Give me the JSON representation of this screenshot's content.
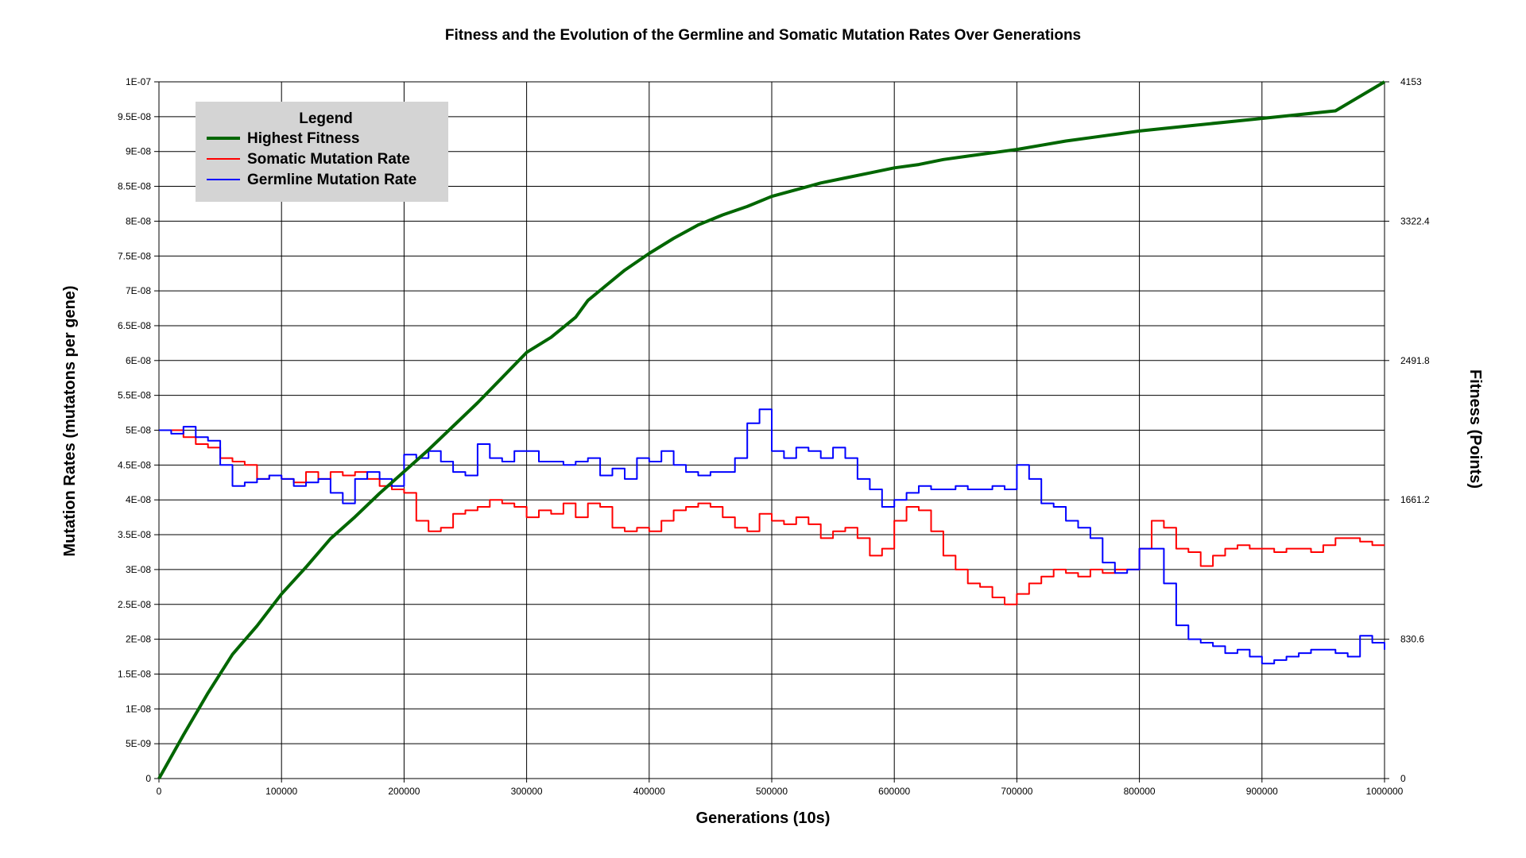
{
  "chart_data": {
    "type": "line",
    "title": "Fitness and the Evolution of the Germline and Somatic Mutation Rates Over Generations",
    "xlabel": "Generations (10s)",
    "ylabel_left": "Mutation Rates (mutatons per gene)",
    "ylabel_right": "Fitness (Points)",
    "xlim": [
      0,
      1000000
    ],
    "ylim_left": [
      0,
      1e-07
    ],
    "ylim_right": [
      0,
      4153
    ],
    "grid": true,
    "legend_placement": "top-left",
    "legend_title": "Legend",
    "x_ticks": [
      "0",
      "100000",
      "200000",
      "300000",
      "400000",
      "500000",
      "600000",
      "700000",
      "800000",
      "900000",
      "1000000"
    ],
    "y_left_ticks": [
      "0",
      "5E-09",
      "1E-08",
      "1.5E-08",
      "2E-08",
      "2.5E-08",
      "3E-08",
      "3.5E-08",
      "4E-08",
      "4.5E-08",
      "5E-08",
      "5.5E-08",
      "6E-08",
      "6.5E-08",
      "7E-08",
      "7.5E-08",
      "8E-08",
      "8.5E-08",
      "9E-08",
      "9.5E-08",
      "1E-07"
    ],
    "y_right_ticks": [
      "0",
      "830.6",
      "1661.2",
      "2491.8",
      "3322.4",
      "4153"
    ],
    "series": [
      {
        "name": "Highest Fitness",
        "axis": "right",
        "color": "#006600",
        "x": [
          0,
          20000,
          40000,
          60000,
          80000,
          100000,
          120000,
          140000,
          160000,
          180000,
          200000,
          220000,
          240000,
          260000,
          280000,
          300000,
          320000,
          340000,
          350000,
          360000,
          380000,
          400000,
          420000,
          440000,
          460000,
          480000,
          500000,
          520000,
          540000,
          560000,
          580000,
          600000,
          620000,
          640000,
          660000,
          680000,
          700000,
          720000,
          740000,
          760000,
          780000,
          800000,
          840000,
          880000,
          920000,
          960000,
          1000000
        ],
        "y": [
          0,
          260,
          510,
          740,
          910,
          1100,
          1260,
          1430,
          1560,
          1700,
          1830,
          1960,
          2100,
          2240,
          2390,
          2540,
          2630,
          2750,
          2850,
          2910,
          3030,
          3130,
          3220,
          3300,
          3360,
          3410,
          3470,
          3510,
          3550,
          3580,
          3610,
          3640,
          3660,
          3690,
          3710,
          3730,
          3750,
          3775,
          3800,
          3820,
          3840,
          3860,
          3890,
          3920,
          3950,
          3980,
          4153
        ]
      },
      {
        "name": "Somatic Mutation Rate",
        "axis": "left",
        "color": "#ff0000",
        "x": [
          0,
          10000,
          20000,
          30000,
          40000,
          50000,
          60000,
          70000,
          80000,
          90000,
          100000,
          110000,
          120000,
          130000,
          140000,
          150000,
          160000,
          170000,
          180000,
          190000,
          200000,
          210000,
          220000,
          230000,
          240000,
          250000,
          260000,
          270000,
          280000,
          290000,
          300000,
          310000,
          320000,
          330000,
          340000,
          350000,
          360000,
          370000,
          380000,
          390000,
          400000,
          410000,
          420000,
          430000,
          440000,
          450000,
          460000,
          470000,
          480000,
          490000,
          500000,
          510000,
          520000,
          530000,
          540000,
          550000,
          560000,
          570000,
          580000,
          590000,
          600000,
          610000,
          620000,
          630000,
          640000,
          650000,
          660000,
          670000,
          680000,
          690000,
          700000,
          710000,
          720000,
          730000,
          740000,
          750000,
          760000,
          770000,
          780000,
          790000,
          800000,
          810000,
          820000,
          830000,
          840000,
          850000,
          860000,
          870000,
          880000,
          890000,
          900000,
          910000,
          920000,
          930000,
          940000,
          950000,
          960000,
          970000,
          980000,
          990000,
          1000000
        ],
        "y": [
          5e-08,
          5e-08,
          4.9e-08,
          4.8e-08,
          4.75e-08,
          4.6e-08,
          4.55e-08,
          4.5e-08,
          4.3e-08,
          4.35e-08,
          4.3e-08,
          4.25e-08,
          4.4e-08,
          4.3e-08,
          4.4e-08,
          4.35e-08,
          4.4e-08,
          4.3e-08,
          4.2e-08,
          4.15e-08,
          4.1e-08,
          3.7e-08,
          3.55e-08,
          3.6e-08,
          3.8e-08,
          3.85e-08,
          3.9e-08,
          4e-08,
          3.95e-08,
          3.9e-08,
          3.75e-08,
          3.85e-08,
          3.8e-08,
          3.95e-08,
          3.75e-08,
          3.95e-08,
          3.9e-08,
          3.6e-08,
          3.55e-08,
          3.6e-08,
          3.55e-08,
          3.7e-08,
          3.85e-08,
          3.9e-08,
          3.95e-08,
          3.9e-08,
          3.75e-08,
          3.6e-08,
          3.55e-08,
          3.8e-08,
          3.7e-08,
          3.65e-08,
          3.75e-08,
          3.65e-08,
          3.45e-08,
          3.55e-08,
          3.6e-08,
          3.45e-08,
          3.2e-08,
          3.3e-08,
          3.7e-08,
          3.9e-08,
          3.85e-08,
          3.55e-08,
          3.2e-08,
          3e-08,
          2.8e-08,
          2.75e-08,
          2.6e-08,
          2.5e-08,
          2.65e-08,
          2.8e-08,
          2.9e-08,
          3e-08,
          2.95e-08,
          2.9e-08,
          3e-08,
          2.95e-08,
          3e-08,
          3e-08,
          3.3e-08,
          3.7e-08,
          3.6e-08,
          3.3e-08,
          3.25e-08,
          3.05e-08,
          3.2e-08,
          3.3e-08,
          3.35e-08,
          3.3e-08,
          3.3e-08,
          3.25e-08,
          3.3e-08,
          3.3e-08,
          3.25e-08,
          3.35e-08,
          3.45e-08,
          3.45e-08,
          3.4e-08,
          3.35e-08,
          3.35e-08
        ]
      },
      {
        "name": "Germline Mutation Rate",
        "axis": "left",
        "color": "#0000ff",
        "x": [
          0,
          10000,
          20000,
          30000,
          40000,
          50000,
          60000,
          70000,
          80000,
          90000,
          100000,
          110000,
          120000,
          130000,
          140000,
          150000,
          160000,
          170000,
          180000,
          190000,
          200000,
          210000,
          220000,
          230000,
          240000,
          250000,
          260000,
          270000,
          280000,
          290000,
          300000,
          310000,
          320000,
          330000,
          340000,
          350000,
          360000,
          370000,
          380000,
          390000,
          400000,
          410000,
          420000,
          430000,
          440000,
          450000,
          460000,
          470000,
          480000,
          490000,
          500000,
          510000,
          520000,
          530000,
          540000,
          550000,
          560000,
          570000,
          580000,
          590000,
          600000,
          610000,
          620000,
          630000,
          640000,
          650000,
          660000,
          670000,
          680000,
          690000,
          700000,
          710000,
          720000,
          730000,
          740000,
          750000,
          760000,
          770000,
          780000,
          790000,
          800000,
          810000,
          820000,
          830000,
          840000,
          850000,
          860000,
          870000,
          880000,
          890000,
          900000,
          910000,
          920000,
          930000,
          940000,
          950000,
          960000,
          970000,
          980000,
          990000,
          1000000
        ],
        "y": [
          5e-08,
          4.95e-08,
          5.05e-08,
          4.9e-08,
          4.85e-08,
          4.5e-08,
          4.2e-08,
          4.25e-08,
          4.3e-08,
          4.35e-08,
          4.3e-08,
          4.2e-08,
          4.25e-08,
          4.3e-08,
          4.1e-08,
          3.95e-08,
          4.3e-08,
          4.4e-08,
          4.3e-08,
          4.2e-08,
          4.65e-08,
          4.6e-08,
          4.7e-08,
          4.55e-08,
          4.4e-08,
          4.35e-08,
          4.8e-08,
          4.6e-08,
          4.55e-08,
          4.7e-08,
          4.7e-08,
          4.55e-08,
          4.55e-08,
          4.5e-08,
          4.55e-08,
          4.6e-08,
          4.35e-08,
          4.45e-08,
          4.3e-08,
          4.6e-08,
          4.55e-08,
          4.7e-08,
          4.5e-08,
          4.4e-08,
          4.35e-08,
          4.4e-08,
          4.4e-08,
          4.6e-08,
          5.1e-08,
          5.3e-08,
          4.7e-08,
          4.6e-08,
          4.75e-08,
          4.7e-08,
          4.6e-08,
          4.75e-08,
          4.6e-08,
          4.3e-08,
          4.15e-08,
          3.9e-08,
          4e-08,
          4.1e-08,
          4.2e-08,
          4.15e-08,
          4.15e-08,
          4.2e-08,
          4.15e-08,
          4.15e-08,
          4.2e-08,
          4.15e-08,
          4.5e-08,
          4.3e-08,
          3.95e-08,
          3.9e-08,
          3.7e-08,
          3.6e-08,
          3.45e-08,
          3.1e-08,
          2.95e-08,
          3e-08,
          3.3e-08,
          3.3e-08,
          2.8e-08,
          2.2e-08,
          2e-08,
          1.95e-08,
          1.9e-08,
          1.8e-08,
          1.85e-08,
          1.75e-08,
          1.65e-08,
          1.7e-08,
          1.75e-08,
          1.8e-08,
          1.85e-08,
          1.85e-08,
          1.8e-08,
          1.75e-08,
          2.05e-08,
          1.95e-08,
          1.85e-08
        ]
      }
    ]
  }
}
